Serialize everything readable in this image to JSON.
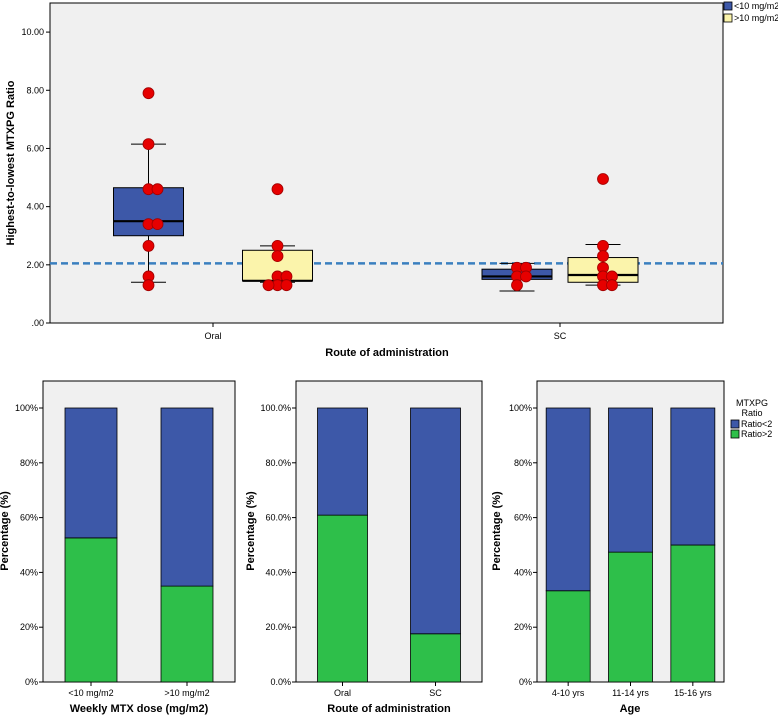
{
  "colors": {
    "panel_bg": "#f0f0f0",
    "blue": "#3d58a8",
    "yellow": "#fbf4ab",
    "green": "#2ebf4a",
    "dot": "#e60000",
    "dashed": "#3a7fbf"
  },
  "chart_data": [
    {
      "type": "box",
      "xlabel": "Route of administration",
      "ylabel": "Highest-to-lowest MTXPG Ratio",
      "ylim": [
        0,
        11
      ],
      "yticks": [
        "10.00",
        "8.00",
        "6.00",
        "4.00",
        "2.00",
        ".00"
      ],
      "ytick_values": [
        10,
        8,
        6,
        4,
        2,
        0
      ],
      "categories": [
        "Oral",
        "SC"
      ],
      "legend": [
        "<10 mg/m2",
        ">10 mg/m2"
      ],
      "reference_line": 2.05,
      "boxes": [
        {
          "group": "Oral",
          "series": "<10 mg/m2",
          "whisker_low": 1.4,
          "q1": 3.0,
          "median": 3.5,
          "q3": 4.65,
          "whisker_high": 6.15,
          "points": [
            7.9,
            6.15,
            4.6,
            4.6,
            3.4,
            3.4,
            2.65,
            1.6,
            1.3
          ]
        },
        {
          "group": "Oral",
          "series": ">10 mg/m2",
          "whisker_low": 1.4,
          "q1": 1.45,
          "median": 1.45,
          "q3": 2.5,
          "whisker_high": 2.65,
          "points": [
            4.6,
            2.65,
            2.3,
            1.6,
            1.6,
            1.3,
            1.3,
            1.3
          ]
        },
        {
          "group": "SC",
          "series": "<10 mg/m2",
          "whisker_low": 1.1,
          "q1": 1.5,
          "median": 1.6,
          "q3": 1.85,
          "whisker_high": 2.05,
          "points": [
            1.9,
            1.9,
            1.6,
            1.6,
            1.3
          ]
        },
        {
          "group": "SC",
          "series": ">10 mg/m2",
          "whisker_low": 1.3,
          "q1": 1.4,
          "median": 1.65,
          "q3": 2.25,
          "whisker_high": 2.7,
          "points": [
            4.95,
            2.65,
            2.3,
            1.9,
            1.6,
            1.6,
            1.3,
            1.3
          ]
        }
      ]
    },
    {
      "type": "bar",
      "stacked": true,
      "xlabel": "Weekly MTX dose (mg/m2)",
      "ylabel": "Percentage (%)",
      "yticks": [
        "100%",
        "80%",
        "60%",
        "40%",
        "20%",
        "0%"
      ],
      "categories": [
        "<10 mg/m2",
        ">10 mg/m2"
      ],
      "series": [
        {
          "name": "Ratio>2",
          "values": [
            52.6,
            35.0
          ]
        },
        {
          "name": "Ratio<2",
          "values": [
            47.4,
            65.0
          ]
        }
      ]
    },
    {
      "type": "bar",
      "stacked": true,
      "xlabel": "Route of administration",
      "ylabel": "Percentage (%)",
      "yticks": [
        "100.0%",
        "80.0%",
        "60.0%",
        "40.0%",
        "20.0%",
        "0.0%"
      ],
      "categories": [
        "Oral",
        "SC"
      ],
      "series": [
        {
          "name": "Ratio>2",
          "values": [
            60.9,
            17.6
          ]
        },
        {
          "name": "Ratio<2",
          "values": [
            39.1,
            82.4
          ]
        }
      ]
    },
    {
      "type": "bar",
      "stacked": true,
      "xlabel": "Age",
      "ylabel": "Percentage (%)",
      "yticks": [
        "100%",
        "80%",
        "60%",
        "40%",
        "20%",
        "0%"
      ],
      "categories": [
        "4-10 yrs",
        "11-14 yrs",
        "15-16 yrs"
      ],
      "series": [
        {
          "name": "Ratio>2",
          "values": [
            33.3,
            47.4,
            50.0
          ]
        },
        {
          "name": "Ratio<2",
          "values": [
            66.7,
            52.6,
            50.0
          ]
        }
      ],
      "legend_title": "MTXPG Ratio",
      "legend": [
        "Ratio<2",
        "Ratio>2"
      ]
    }
  ]
}
